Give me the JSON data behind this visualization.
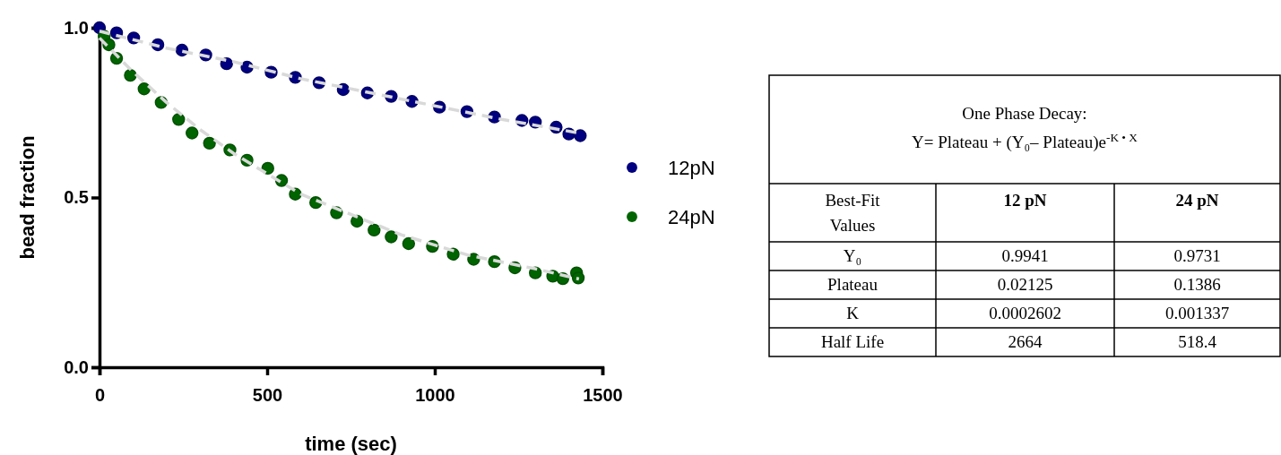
{
  "chart_data": [
    {
      "type": "scatter",
      "xlabel": "time (sec)",
      "ylabel": "bead fraction",
      "xlim": [
        0,
        1500
      ],
      "ylim": [
        0,
        1
      ],
      "xticks": [
        0,
        500,
        1000,
        1500
      ],
      "yticks": [
        {
          "value": 0,
          "label": "0.0"
        },
        {
          "value": 0.5,
          "label": "0.5"
        },
        {
          "value": 1,
          "label": "1.0"
        }
      ],
      "marker": "circle",
      "legend": "right",
      "grid": false,
      "series": [
        {
          "name": "12pN",
          "color": "#000080",
          "x": [
            0,
            51,
            102,
            174,
            246,
            317,
            379,
            440,
            512,
            584,
            655,
            727,
            799,
            870,
            932,
            1014,
            1096,
            1178,
            1260,
            1300,
            1362,
            1400,
            1434
          ],
          "values": [
            1.0,
            0.985,
            0.97,
            0.95,
            0.934,
            0.92,
            0.894,
            0.884,
            0.869,
            0.854,
            0.838,
            0.818,
            0.808,
            0.798,
            0.783,
            0.766,
            0.753,
            0.737,
            0.727,
            0.722,
            0.707,
            0.687,
            0.682
          ]
        },
        {
          "name": "24pN",
          "color": "#006400",
          "x": [
            14,
            28,
            51,
            92,
            133,
            184,
            236,
            276,
            328,
            389,
            440,
            502,
            543,
            584,
            645,
            707,
            768,
            819,
            870,
            922,
            993,
            1055,
            1116,
            1178,
            1239,
            1300,
            1352,
            1382,
            1423,
            1428
          ],
          "values": [
            0.975,
            0.95,
            0.91,
            0.86,
            0.82,
            0.78,
            0.73,
            0.69,
            0.66,
            0.64,
            0.61,
            0.586,
            0.55,
            0.51,
            0.485,
            0.455,
            0.43,
            0.404,
            0.384,
            0.364,
            0.356,
            0.333,
            0.318,
            0.311,
            0.293,
            0.278,
            0.268,
            0.261,
            0.278,
            0.263
          ]
        },
        {
          "type": "line",
          "color": "#d9d9d9",
          "line_style": "dashed",
          "marker": "none",
          "x": [
            0,
            200,
            400,
            600,
            800,
            1000,
            1200,
            1430
          ],
          "values": [
            0.99,
            0.94,
            0.9,
            0.85,
            0.81,
            0.77,
            0.73,
            0.69
          ]
        },
        {
          "type": "line",
          "color": "#d9d9d9",
          "line_style": "dashed",
          "marker": "none",
          "x": [
            0,
            50,
            100,
            200,
            300,
            400,
            500,
            600,
            700,
            800,
            900,
            1000,
            1100,
            1200,
            1300,
            1430
          ],
          "values": [
            0.97,
            0.92,
            0.87,
            0.78,
            0.7,
            0.63,
            0.57,
            0.51,
            0.47,
            0.43,
            0.39,
            0.36,
            0.33,
            0.31,
            0.29,
            0.26
          ]
        }
      ]
    },
    {
      "type": "other",
      "title": "One Phase Decay:",
      "subtitle": "Y= Plateau + (Y₀– Plateau)e$^{-K • X}$",
      "categories": [
        "Best-Fit Values",
        "12 pN",
        "24 pN"
      ],
      "y_categories": [
        "Y₀",
        "Plateau",
        "K",
        "Half Life"
      ],
      "cell_labels": [
        [
          "0.9941",
          "0.9731"
        ],
        [
          "0.02125",
          "0.1386"
        ],
        [
          "0.0002602",
          "0.001337"
        ],
        [
          "2664",
          "518.4"
        ]
      ]
    }
  ]
}
